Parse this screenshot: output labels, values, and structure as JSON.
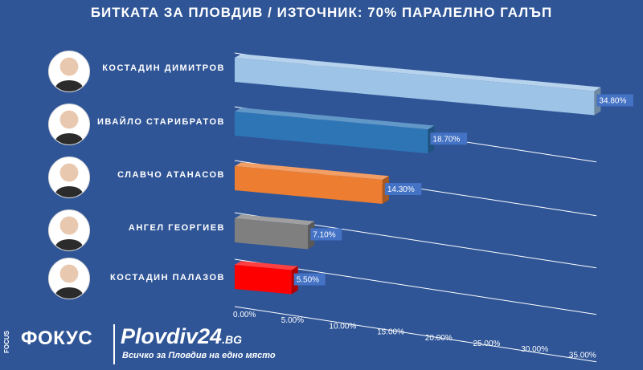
{
  "header": {
    "title": "БИТКАТА ЗА ПЛОВДИВ / ИЗТОЧНИК: 70% ПАРАЛЕЛНО ГАЛЪП"
  },
  "colors": {
    "background": "#2f5597",
    "label_box": "#4472c4"
  },
  "chart_data": {
    "type": "bar",
    "orientation": "horizontal",
    "title": "БИТКАТА ЗА ПЛОВДИВ / ИЗТОЧНИК: 70% ПАРАЛЕЛНО ГАЛЪП",
    "categories": [
      "КОСТАДИН ДИМИТРОВ",
      "ИВАЙЛО СТАРИБРАТОВ",
      "СЛАВЧО АТАНАСОВ",
      "АНГЕЛ ГЕОРГИЕВ",
      "КОСТАДИН ПАЛАЗОВ"
    ],
    "values": [
      34.8,
      18.7,
      14.3,
      7.1,
      5.5
    ],
    "value_labels": [
      "34.80%",
      "18.70%",
      "14.30%",
      "7.10%",
      "5.50%"
    ],
    "bar_colors": [
      "#9dc3e6",
      "#2e75b6",
      "#ed7d31",
      "#7f7f7f",
      "#ff0000"
    ],
    "x_ticks": [
      "0.00%",
      "5.00%",
      "10.00%",
      "15.00%",
      "20.00%",
      "25.00%",
      "30.00%",
      "35.00%"
    ],
    "xlim": [
      0,
      35
    ],
    "grid": true,
    "legend": "none"
  },
  "candidates": [
    {
      "name": "КОСТАДИН ДИМИТРОВ"
    },
    {
      "name": "ИВАЙЛО СТАРИБРАТОВ"
    },
    {
      "name": "СЛАВЧО АТАНАСОВ"
    },
    {
      "name": "АНГЕЛ ГЕОРГИЕВ"
    },
    {
      "name": "КОСТАДИН ПАЛАЗОВ"
    }
  ],
  "branding": {
    "focus_small": "FOCUS",
    "focus": "ФОКУС",
    "site_main": "Plovdiv24",
    "site_suffix": ".BG",
    "tagline": "Всичко за Пловдив на едно място"
  }
}
